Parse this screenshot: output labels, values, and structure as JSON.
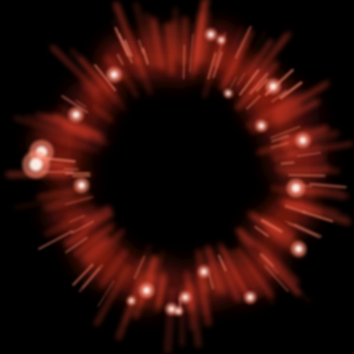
{
  "scene": {
    "subject": "red-particle-ring-burst",
    "background_color": "#000000",
    "colors": {
      "glow": "#c02818",
      "streak": "#e0402c",
      "hot": "#ff8a70",
      "core": "#fff2ea"
    }
  }
}
